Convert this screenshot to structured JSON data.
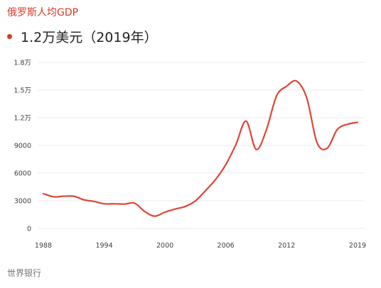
{
  "header": {
    "title": "俄罗斯人均GDP",
    "value": "1.2万美元（2019年）"
  },
  "footer": {
    "source": "世界银行"
  },
  "colors": {
    "title": "#d23a2a",
    "line": "#e04535",
    "grid": "#ebebeb",
    "tick_text": "#3c4043"
  },
  "chart_data": {
    "type": "line",
    "title": "",
    "xlabel": "",
    "ylabel": "",
    "xlim": [
      1988,
      2019
    ],
    "ylim": [
      0,
      18000
    ],
    "grid": true,
    "y_ticks": [
      {
        "value": 0,
        "label": "0"
      },
      {
        "value": 3000,
        "label": "3000"
      },
      {
        "value": 6000,
        "label": "6000"
      },
      {
        "value": 9000,
        "label": "9000"
      },
      {
        "value": 12000,
        "label": "1.2万"
      },
      {
        "value": 15000,
        "label": "1.5万"
      },
      {
        "value": 18000,
        "label": "1.8万"
      }
    ],
    "x_ticks": [
      {
        "value": 1988,
        "label": "1988"
      },
      {
        "value": 1994,
        "label": "1994"
      },
      {
        "value": 2000,
        "label": "2000"
      },
      {
        "value": 2006,
        "label": "2006"
      },
      {
        "value": 2012,
        "label": "2012"
      },
      {
        "value": 2019,
        "label": "2019"
      }
    ],
    "series": [
      {
        "x": [
          1988,
          1989,
          1990,
          1991,
          1992,
          1993,
          1994,
          1995,
          1996,
          1997,
          1998,
          1999,
          2000,
          2001,
          2002,
          2003,
          2004,
          2005,
          2006,
          2007,
          2008,
          2009,
          2010,
          2011,
          2012,
          2013,
          2014,
          2015,
          2016,
          2017,
          2018,
          2019
        ],
        "y": [
          3770,
          3430,
          3490,
          3490,
          3100,
          2930,
          2670,
          2670,
          2640,
          2740,
          1830,
          1330,
          1770,
          2100,
          2380,
          2980,
          4100,
          5320,
          6920,
          9100,
          11640,
          8560,
          10670,
          14350,
          15420,
          15970,
          14100,
          9310,
          8700,
          10720,
          11290,
          11500
        ]
      }
    ]
  }
}
